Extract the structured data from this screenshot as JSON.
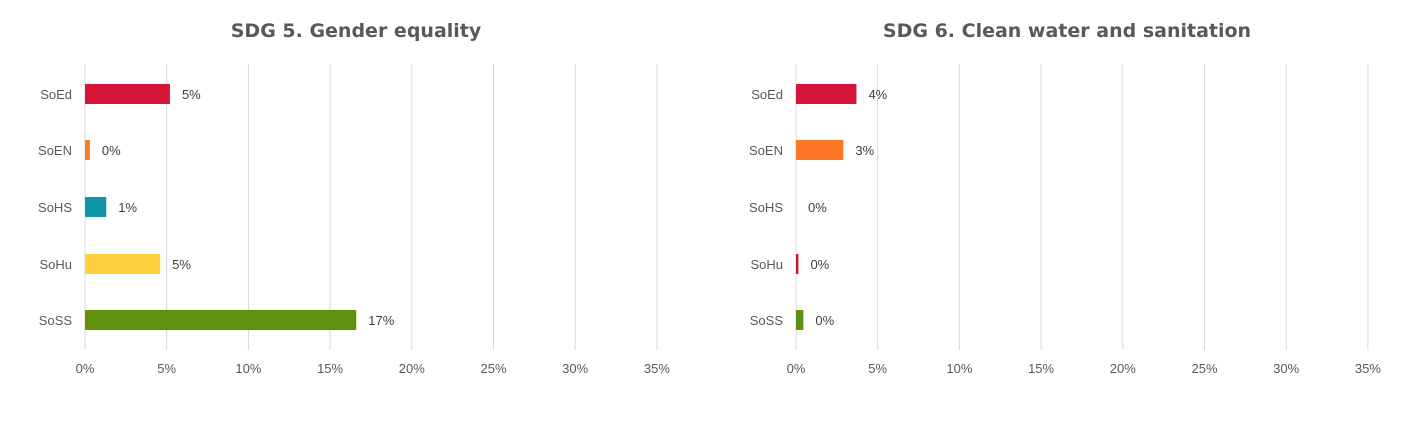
{
  "chart_data": [
    {
      "type": "bar",
      "orientation": "horizontal",
      "title": "SDG 5. Gender equality",
      "categories": [
        "SoEd",
        "SoEN",
        "SoHS",
        "SoHu",
        "SoSS"
      ],
      "values": [
        5,
        0,
        1,
        5,
        17
      ],
      "value_labels": [
        "5%",
        "0%",
        "1%",
        "5%",
        "17%"
      ],
      "bar_values_estimated": [
        5.2,
        0.3,
        1.3,
        4.6,
        16.6
      ],
      "colors": [
        "#d7153a",
        "#f47f2a",
        "#0f95a8",
        "#ffcf3f",
        "#5f9110"
      ],
      "xlim": [
        0,
        35
      ],
      "x_ticks": [
        "0%",
        "5%",
        "10%",
        "15%",
        "20%",
        "25%",
        "30%",
        "35%"
      ],
      "grid": "vertical"
    },
    {
      "type": "bar",
      "orientation": "horizontal",
      "title": "SDG 6. Clean water and sanitation",
      "categories": [
        "SoEd",
        "SoEN",
        "SoHS",
        "SoHu",
        "SoSS"
      ],
      "values": [
        4,
        3,
        0,
        0,
        0
      ],
      "value_labels": [
        "4%",
        "3%",
        "0%",
        "0%",
        "0%"
      ],
      "bar_values_estimated": [
        3.7,
        2.9,
        0,
        0.15,
        0.45
      ],
      "colors": [
        "#d7153a",
        "#fd7625",
        "#0f95a8",
        "#c1182f",
        "#5f9110"
      ],
      "xlim": [
        0,
        35
      ],
      "x_ticks": [
        "0%",
        "5%",
        "10%",
        "15%",
        "20%",
        "25%",
        "30%",
        "35%"
      ],
      "grid": "vertical"
    }
  ]
}
